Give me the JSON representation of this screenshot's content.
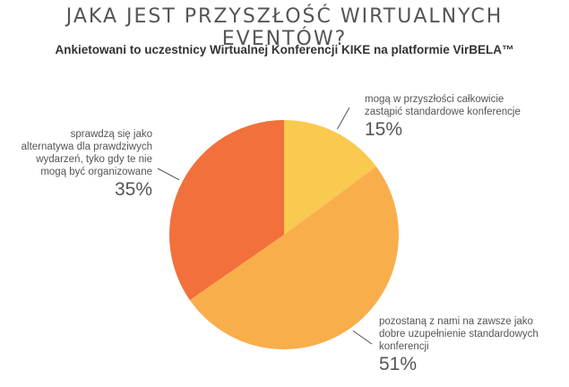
{
  "header": {
    "title": "JAKA JEST PRZYSZŁOŚĆ WIRTUALNYCH EVENTÓW?",
    "subtitle": "Ankietowani to uczestnicy Wirtualnej Konferencji KIKE na platformie VirBELA™"
  },
  "chart_data": {
    "type": "pie",
    "title": "JAKA JEST PRZYSZŁOŚĆ WIRTUALNYCH EVENTÓW?",
    "subtitle": "Ankietowani to uczestnicy Wirtualnej Konferencji KIKE na platformie VirBELA™",
    "start": "12 o'clock, clockwise",
    "slices": [
      {
        "label": "mogą w przyszłości całkowicie zastąpić standardowe konferencje",
        "value": 15,
        "value_label": "15%",
        "color": "#FAC950"
      },
      {
        "label": "pozostaną z nami na zawsze jako dobre uzupełnienie standardowych konferencji",
        "value": 51,
        "value_label": "51%",
        "color": "#F9AE4C"
      },
      {
        "label": "sprawdzą się jako alternatywa dla prawdziwych wydarzeń, tyko gdy te nie mogą być organizowane",
        "value": 35,
        "value_label": "35%",
        "color": "#F2703B"
      }
    ]
  }
}
